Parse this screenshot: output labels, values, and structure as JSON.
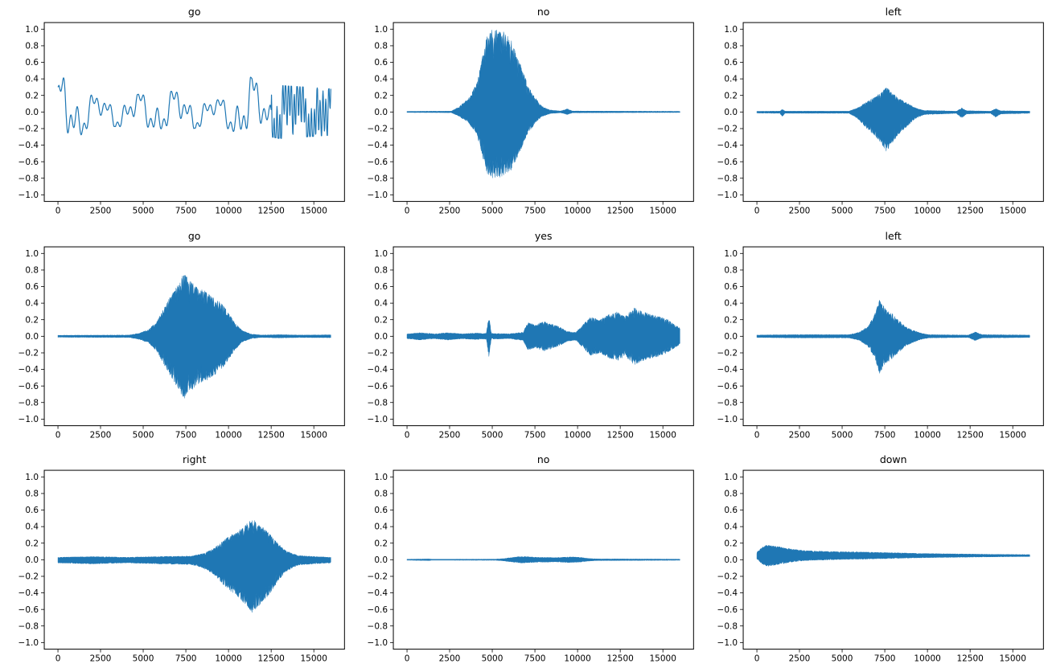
{
  "figure": {
    "background": "#ffffff",
    "line_color": "#1f77b4",
    "axis_color": "#000000",
    "rows": 3,
    "cols": 3,
    "description": "3x3 grid of audio waveform plots of speech commands"
  },
  "chart_data": {
    "type": "line",
    "subtype": "audio-waveform-grid",
    "grid": "off",
    "legend": "none",
    "common_axes": {
      "xlim": [
        -800,
        16800
      ],
      "ylim": [
        -1.08,
        1.08
      ],
      "xticks": [
        0,
        2500,
        5000,
        7500,
        10000,
        12500,
        15000
      ],
      "yticks": [
        1.0,
        0.8,
        0.6,
        0.4,
        0.2,
        0.0,
        -0.2,
        -0.4,
        -0.6,
        -0.8,
        -1.0
      ],
      "x_samples": 16000,
      "xlabel": "",
      "ylabel": ""
    },
    "subplots": [
      {
        "title": "go",
        "style": "line",
        "offset": 0,
        "neg_scale": 1,
        "components": [
          [
            0.6,
            7,
            1.3
          ],
          [
            0.45,
            17,
            0.5
          ],
          [
            0.35,
            41,
            2.0
          ]
        ],
        "hf": [
          0.85,
          95,
          12500
        ],
        "envelope": [
          [
            0,
            0.3
          ],
          [
            400,
            0.45
          ],
          [
            1200,
            0.3
          ],
          [
            2500,
            0.17
          ],
          [
            4000,
            0.18
          ],
          [
            5500,
            0.25
          ],
          [
            7000,
            0.25
          ],
          [
            8500,
            0.17
          ],
          [
            9500,
            0.15
          ],
          [
            10800,
            0.35
          ],
          [
            11300,
            0.42
          ],
          [
            12000,
            0.28
          ],
          [
            13000,
            0.32
          ],
          [
            14500,
            0.3
          ],
          [
            16000,
            0.28
          ]
        ]
      },
      {
        "title": "no",
        "style": "fill",
        "offset": 0,
        "neg_scale": 0.8,
        "envelope": [
          [
            0,
            0.008
          ],
          [
            2600,
            0.01
          ],
          [
            3000,
            0.06
          ],
          [
            3600,
            0.16
          ],
          [
            4100,
            0.35
          ],
          [
            4400,
            0.65
          ],
          [
            4700,
            0.95
          ],
          [
            5000,
            1.0
          ],
          [
            5600,
            0.98
          ],
          [
            6100,
            0.88
          ],
          [
            6400,
            0.72
          ],
          [
            6800,
            0.5
          ],
          [
            7100,
            0.32
          ],
          [
            7500,
            0.18
          ],
          [
            7900,
            0.07
          ],
          [
            8400,
            0.025
          ],
          [
            9000,
            0.012
          ],
          [
            9400,
            0.04
          ],
          [
            9700,
            0.012
          ],
          [
            16000,
            0.008
          ]
        ]
      },
      {
        "title": "left",
        "style": "fill",
        "offset": 0,
        "neg_scale": 1.6,
        "envelope": [
          [
            0,
            0.008
          ],
          [
            1350,
            0.01
          ],
          [
            1500,
            0.035
          ],
          [
            1650,
            0.01
          ],
          [
            5400,
            0.01
          ],
          [
            5900,
            0.05
          ],
          [
            6400,
            0.12
          ],
          [
            6900,
            0.18
          ],
          [
            7300,
            0.24
          ],
          [
            7600,
            0.3
          ],
          [
            7900,
            0.24
          ],
          [
            8300,
            0.17
          ],
          [
            8800,
            0.11
          ],
          [
            9300,
            0.05
          ],
          [
            9800,
            0.02
          ],
          [
            11700,
            0.01
          ],
          [
            12000,
            0.05
          ],
          [
            12300,
            0.015
          ],
          [
            13700,
            0.01
          ],
          [
            14000,
            0.04
          ],
          [
            14300,
            0.015
          ],
          [
            16000,
            0.01
          ]
        ]
      },
      {
        "title": "go",
        "style": "fill",
        "offset": 0,
        "neg_scale": 1,
        "envelope": [
          [
            0,
            0.012
          ],
          [
            4200,
            0.015
          ],
          [
            4800,
            0.04
          ],
          [
            5300,
            0.08
          ],
          [
            5800,
            0.18
          ],
          [
            6300,
            0.38
          ],
          [
            6800,
            0.55
          ],
          [
            7200,
            0.7
          ],
          [
            7400,
            0.76
          ],
          [
            7700,
            0.68
          ],
          [
            8100,
            0.6
          ],
          [
            8600,
            0.55
          ],
          [
            9100,
            0.48
          ],
          [
            9600,
            0.4
          ],
          [
            10000,
            0.28
          ],
          [
            10400,
            0.16
          ],
          [
            10800,
            0.07
          ],
          [
            11300,
            0.03
          ],
          [
            11900,
            0.015
          ],
          [
            13000,
            0.02
          ],
          [
            14200,
            0.015
          ],
          [
            16000,
            0.018
          ]
        ]
      },
      {
        "title": "yes",
        "style": "fill",
        "offset": 0,
        "neg_scale": 1,
        "envelope": [
          [
            0,
            0.03
          ],
          [
            800,
            0.045
          ],
          [
            1600,
            0.03
          ],
          [
            2400,
            0.045
          ],
          [
            3200,
            0.03
          ],
          [
            4000,
            0.04
          ],
          [
            4650,
            0.035
          ],
          [
            4800,
            0.25
          ],
          [
            4950,
            0.035
          ],
          [
            6000,
            0.03
          ],
          [
            6800,
            0.05
          ],
          [
            7100,
            0.17
          ],
          [
            7500,
            0.14
          ],
          [
            8000,
            0.18
          ],
          [
            8500,
            0.15
          ],
          [
            9000,
            0.11
          ],
          [
            9400,
            0.06
          ],
          [
            9900,
            0.05
          ],
          [
            10300,
            0.14
          ],
          [
            10800,
            0.24
          ],
          [
            11300,
            0.2
          ],
          [
            11800,
            0.26
          ],
          [
            12300,
            0.3
          ],
          [
            12800,
            0.24
          ],
          [
            13300,
            0.35
          ],
          [
            13800,
            0.3
          ],
          [
            14300,
            0.27
          ],
          [
            14800,
            0.24
          ],
          [
            15300,
            0.2
          ],
          [
            15700,
            0.14
          ],
          [
            16000,
            0.1
          ]
        ]
      },
      {
        "title": "left",
        "style": "fill",
        "offset": 0,
        "neg_scale": 1,
        "envelope": [
          [
            0,
            0.015
          ],
          [
            2000,
            0.02
          ],
          [
            5400,
            0.02
          ],
          [
            6000,
            0.05
          ],
          [
            6500,
            0.12
          ],
          [
            6900,
            0.26
          ],
          [
            7200,
            0.45
          ],
          [
            7500,
            0.34
          ],
          [
            7900,
            0.28
          ],
          [
            8300,
            0.2
          ],
          [
            8700,
            0.12
          ],
          [
            9100,
            0.08
          ],
          [
            9600,
            0.04
          ],
          [
            10100,
            0.02
          ],
          [
            12400,
            0.015
          ],
          [
            12800,
            0.055
          ],
          [
            13200,
            0.02
          ],
          [
            16000,
            0.015
          ]
        ]
      },
      {
        "title": "right",
        "style": "fill",
        "offset": 0,
        "neg_scale": 1.3,
        "envelope": [
          [
            0,
            0.03
          ],
          [
            2000,
            0.04
          ],
          [
            4000,
            0.03
          ],
          [
            6000,
            0.04
          ],
          [
            7800,
            0.045
          ],
          [
            8400,
            0.07
          ],
          [
            9000,
            0.12
          ],
          [
            9500,
            0.2
          ],
          [
            10000,
            0.28
          ],
          [
            10500,
            0.34
          ],
          [
            11000,
            0.42
          ],
          [
            11400,
            0.5
          ],
          [
            11700,
            0.44
          ],
          [
            12100,
            0.38
          ],
          [
            12500,
            0.3
          ],
          [
            12900,
            0.2
          ],
          [
            13300,
            0.12
          ],
          [
            13700,
            0.08
          ],
          [
            14100,
            0.05
          ],
          [
            15000,
            0.04
          ],
          [
            16000,
            0.03
          ]
        ]
      },
      {
        "title": "no",
        "style": "fill",
        "offset": 0,
        "neg_scale": 1,
        "envelope": [
          [
            0,
            0.006
          ],
          [
            1300,
            0.01
          ],
          [
            1450,
            0.006
          ],
          [
            5200,
            0.007
          ],
          [
            5700,
            0.015
          ],
          [
            6200,
            0.03
          ],
          [
            6700,
            0.04
          ],
          [
            7200,
            0.035
          ],
          [
            7700,
            0.03
          ],
          [
            8200,
            0.03
          ],
          [
            8700,
            0.025
          ],
          [
            9200,
            0.032
          ],
          [
            9700,
            0.035
          ],
          [
            10200,
            0.028
          ],
          [
            10700,
            0.015
          ],
          [
            11200,
            0.01
          ],
          [
            16000,
            0.007
          ]
        ]
      },
      {
        "title": "down",
        "style": "fill",
        "offset": 0.05,
        "neg_scale": 1,
        "envelope": [
          [
            0,
            0.04
          ],
          [
            300,
            0.1
          ],
          [
            600,
            0.13
          ],
          [
            1000,
            0.12
          ],
          [
            1500,
            0.1
          ],
          [
            2000,
            0.08
          ],
          [
            3000,
            0.06
          ],
          [
            4500,
            0.05
          ],
          [
            6000,
            0.045
          ],
          [
            8000,
            0.035
          ],
          [
            10000,
            0.025
          ],
          [
            12000,
            0.02
          ],
          [
            14000,
            0.015
          ],
          [
            16000,
            0.012
          ]
        ]
      }
    ]
  }
}
